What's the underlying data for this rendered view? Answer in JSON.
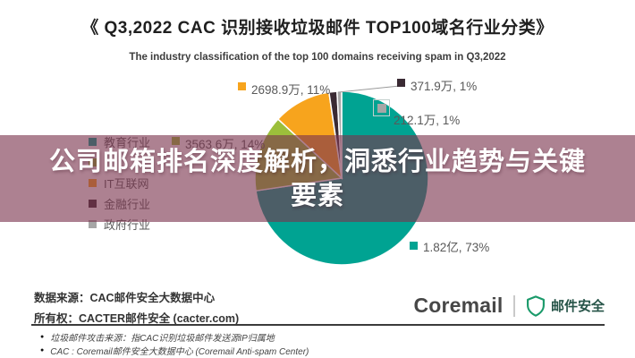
{
  "header": {
    "title": "《 Q3,2022 CAC 识别接收垃圾邮件 TOP100域名行业分类》",
    "subtitle": "The industry classification of the top 100 domains receiving spam in Q3,2022"
  },
  "chart_data": {
    "type": "pie",
    "title": "Q3,2022 CAC 识别接收垃圾邮件 TOP100域名行业分类",
    "values_unit": "万",
    "legend_position": "left",
    "series": [
      {
        "name": "教育行业",
        "value": 18200,
        "label_text": "1.82亿, 73%",
        "percent": 73,
        "color": "#00A392"
      },
      {
        "name": "",
        "value": 3563.6,
        "label_text": "3563.6万, 14%",
        "percent": 14,
        "color": "#9CBF3B"
      },
      {
        "name": "IT互联网",
        "value": 2698.9,
        "label_text": "2698.9万, 11%",
        "percent": 11,
        "color": "#F7A41D"
      },
      {
        "name": "金融行业",
        "value": 371.9,
        "label_text": "371.9万, 1%",
        "percent": 1,
        "color": "#3A2A33"
      },
      {
        "name": "政府行业",
        "value": 212.1,
        "label_text": "212.1万, 1%",
        "percent": 1,
        "color": "#A6A6A6"
      }
    ],
    "selected_label": "212.1万, 1%"
  },
  "banner": {
    "text_line1": "公司邮箱排名深度解析，洞悉行业趋势与关键",
    "text_line2": "要素",
    "bg_color": "rgba(122,52,78,0.62)"
  },
  "footer": {
    "source_line": "数据来源：CAC邮件安全大数据中心",
    "owner_line": "所有权：CACTER邮件安全 (cacter.com)",
    "brand_name": "Coremail",
    "brand_product": "邮件安全",
    "shield_color": "#1A9A6A",
    "bullet_icon": "●"
  },
  "footnotes": {
    "note1": "垃圾邮件攻击来源：指CAC识别垃圾邮件发送源IP归属地",
    "note2": "CAC : Coremail邮件安全大数据中心 (Coremail Anti-spam Center)"
  }
}
